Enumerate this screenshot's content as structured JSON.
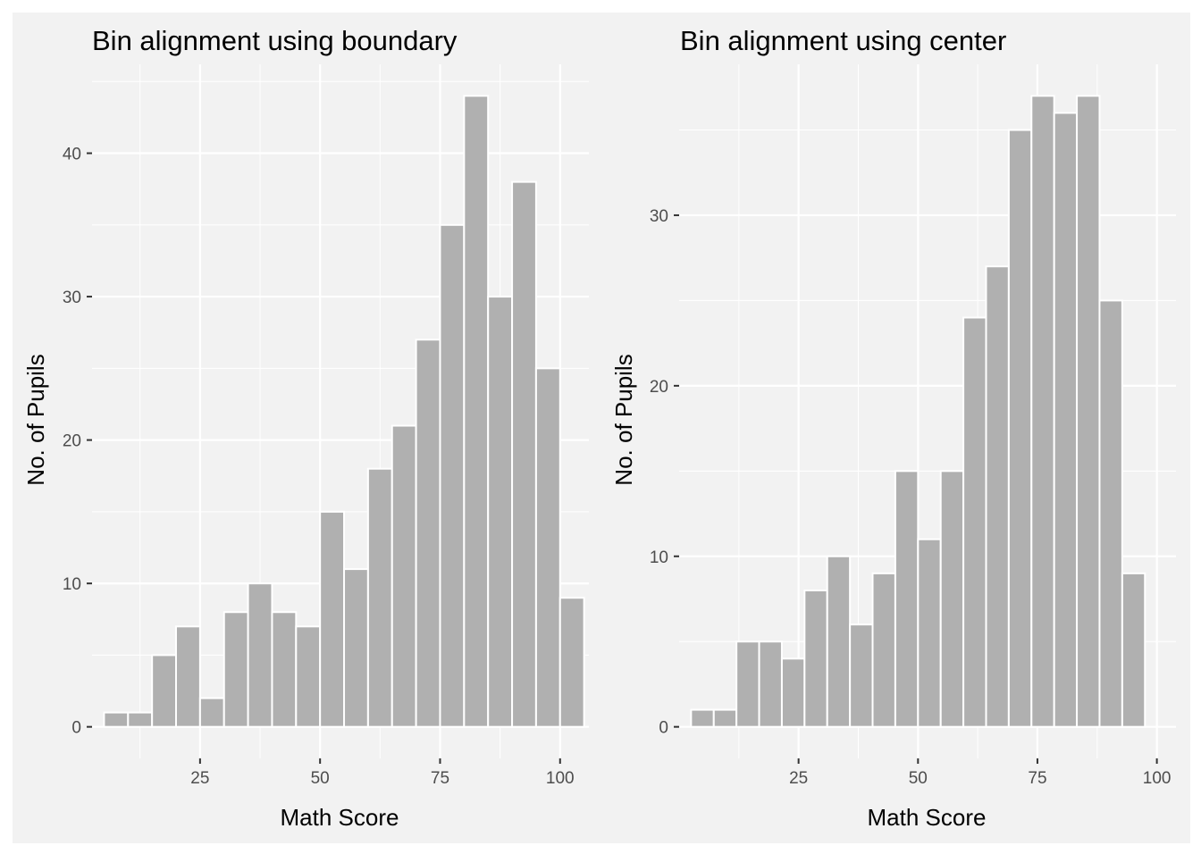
{
  "colors": {
    "panel_background": "#f2f2f2",
    "grid": "#ffffff",
    "bar_fill": "#b0b0b0",
    "bar_outline": "#ffffff",
    "tick_text": "#4d4d4d",
    "tick_mark": "#333333"
  },
  "chart_data": [
    {
      "type": "bar",
      "title": "Bin alignment using boundary",
      "xlabel": "Math Score",
      "ylabel": "No. of Pupils",
      "xlim": [
        2.5,
        106.0
      ],
      "ylim": [
        -2.2,
        46.2
      ],
      "x_ticks": [
        25,
        50,
        75,
        100
      ],
      "x_tick_labels": [
        "25",
        "50",
        "75",
        "100"
      ],
      "y_ticks": [
        0,
        10,
        20,
        30,
        40
      ],
      "y_tick_labels": [
        "0",
        "10",
        "20",
        "30",
        "40"
      ],
      "bin_width": 5,
      "grid": true,
      "legend": "none",
      "bins": [
        {
          "x0": 5,
          "x1": 10,
          "count": 1
        },
        {
          "x0": 10,
          "x1": 15,
          "count": 1
        },
        {
          "x0": 15,
          "x1": 20,
          "count": 5
        },
        {
          "x0": 20,
          "x1": 25,
          "count": 7
        },
        {
          "x0": 25,
          "x1": 30,
          "count": 2
        },
        {
          "x0": 30,
          "x1": 35,
          "count": 8
        },
        {
          "x0": 35,
          "x1": 40,
          "count": 10
        },
        {
          "x0": 40,
          "x1": 45,
          "count": 8
        },
        {
          "x0": 45,
          "x1": 50,
          "count": 7
        },
        {
          "x0": 50,
          "x1": 55,
          "count": 15
        },
        {
          "x0": 55,
          "x1": 60,
          "count": 11
        },
        {
          "x0": 60,
          "x1": 65,
          "count": 18
        },
        {
          "x0": 65,
          "x1": 70,
          "count": 21
        },
        {
          "x0": 70,
          "x1": 75,
          "count": 27
        },
        {
          "x0": 75,
          "x1": 80,
          "count": 35
        },
        {
          "x0": 80,
          "x1": 85,
          "count": 44
        },
        {
          "x0": 85,
          "x1": 90,
          "count": 30
        },
        {
          "x0": 90,
          "x1": 95,
          "count": 38
        },
        {
          "x0": 95,
          "x1": 100,
          "count": 25
        },
        {
          "x0": 100,
          "x1": 105,
          "count": 9
        }
      ]
    },
    {
      "type": "bar",
      "title": "Bin alignment using center",
      "xlabel": "Math Score",
      "ylabel": "No. of Pupils",
      "xlim": [
        0.0,
        104.0
      ],
      "ylim": [
        -1.85,
        38.85
      ],
      "x_ticks": [
        25,
        50,
        75,
        100
      ],
      "x_tick_labels": [
        "25",
        "50",
        "75",
        "100"
      ],
      "y_ticks": [
        0,
        10,
        20,
        30
      ],
      "y_tick_labels": [
        "0",
        "10",
        "20",
        "30"
      ],
      "bin_width": 4.75,
      "grid": true,
      "legend": "none",
      "bins": [
        {
          "x0": 2.5,
          "x1": 7.25,
          "count": 1
        },
        {
          "x0": 7.25,
          "x1": 12.0,
          "count": 1
        },
        {
          "x0": 12.0,
          "x1": 16.75,
          "count": 5
        },
        {
          "x0": 16.75,
          "x1": 21.5,
          "count": 5
        },
        {
          "x0": 21.5,
          "x1": 26.25,
          "count": 4
        },
        {
          "x0": 26.25,
          "x1": 31.0,
          "count": 8
        },
        {
          "x0": 31.0,
          "x1": 35.75,
          "count": 10
        },
        {
          "x0": 35.75,
          "x1": 40.5,
          "count": 6
        },
        {
          "x0": 40.5,
          "x1": 45.25,
          "count": 9
        },
        {
          "x0": 45.25,
          "x1": 50.0,
          "count": 15
        },
        {
          "x0": 50.0,
          "x1": 54.75,
          "count": 11
        },
        {
          "x0": 54.75,
          "x1": 59.5,
          "count": 15
        },
        {
          "x0": 59.5,
          "x1": 64.25,
          "count": 24
        },
        {
          "x0": 64.25,
          "x1": 69.0,
          "count": 27
        },
        {
          "x0": 69.0,
          "x1": 73.75,
          "count": 35
        },
        {
          "x0": 73.75,
          "x1": 78.5,
          "count": 37
        },
        {
          "x0": 78.5,
          "x1": 83.25,
          "count": 36
        },
        {
          "x0": 83.25,
          "x1": 88.0,
          "count": 37
        },
        {
          "x0": 88.0,
          "x1": 92.75,
          "count": 25
        },
        {
          "x0": 92.75,
          "x1": 97.5,
          "count": 9
        }
      ]
    }
  ]
}
